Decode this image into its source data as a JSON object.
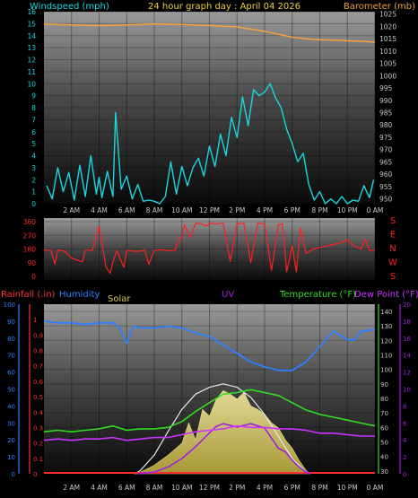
{
  "colors": {
    "windspeed": "#19d6e0",
    "barometer": "#f0a040",
    "wind_dir": "#ff2020",
    "rainfall": "#ff3030",
    "humidity": "#2f7fff",
    "solar": "#d8c85a",
    "uv": "#a020e0",
    "temperature": "#33dd22",
    "dewpoint": "#cc33ff",
    "axis_text": "#c8c8c8",
    "background": "#000000"
  },
  "header": {
    "left_label": "Windspeed (mph)",
    "title": "24 hour graph day : April 04 2026",
    "right_label": "Barometer (mb)"
  },
  "panel3_labels": {
    "rainfall": "Rainfall (.in)",
    "humidity": "Humidity",
    "solar": "Solar",
    "uv": "UV",
    "temperature": "Temperature (°F)",
    "dewpoint": "Dew Point (°F)"
  },
  "x_ticks": [
    "2 AM",
    "4 AM",
    "6 AM",
    "8 AM",
    "10 AM",
    "12 PM",
    "2 PM",
    "4 PM",
    "6 PM",
    "8 PM",
    "10 PM",
    "0 AM"
  ],
  "chart_data": [
    {
      "type": "line",
      "id": "wind_baro",
      "title": "24 hour graph day : April 04 2026",
      "xlabel": "",
      "x_unit": "hours (0 = midnight, 24 = next midnight)",
      "ylabel": "Windspeed (mph)",
      "ylim": [
        0,
        16
      ],
      "yticks": [
        0,
        1,
        2,
        3,
        4,
        5,
        6,
        7,
        8,
        9,
        10,
        11,
        12,
        13,
        14,
        15,
        16
      ],
      "y2label": "Barometer (mb)",
      "y2lim": [
        948,
        1026
      ],
      "y2ticks": [
        950,
        955,
        960,
        965,
        970,
        975,
        980,
        985,
        990,
        995,
        1000,
        1005,
        1010,
        1015,
        1020,
        1025
      ],
      "series": [
        {
          "name": "Windspeed (mph)",
          "axis": "left",
          "x": [
            0.2,
            0.6,
            1.0,
            1.4,
            1.8,
            2.2,
            2.6,
            3.0,
            3.4,
            3.8,
            4.0,
            4.2,
            4.6,
            5.0,
            5.2,
            5.6,
            6.0,
            6.4,
            6.8,
            7.2,
            7.6,
            8.0,
            8.4,
            8.8,
            9.2,
            9.6,
            10.0,
            10.4,
            10.8,
            11.2,
            11.6,
            12.0,
            12.4,
            12.8,
            13.2,
            13.6,
            14.0,
            14.4,
            14.8,
            15.2,
            15.6,
            16.0,
            16.4,
            16.8,
            17.2,
            17.6,
            18.0,
            18.4,
            18.8,
            19.2,
            19.6,
            20.0,
            20.4,
            20.8,
            21.2,
            21.6,
            22.0,
            22.4,
            22.8,
            23.2,
            23.6,
            23.9
          ],
          "values": [
            1.5,
            0.4,
            3.0,
            1.0,
            2.6,
            0.3,
            3.2,
            0.6,
            4.0,
            0.8,
            2.2,
            0.5,
            2.7,
            0.6,
            7.6,
            1.2,
            2.3,
            0.4,
            1.6,
            0.2,
            0.3,
            0.2,
            0.0,
            0.6,
            3.5,
            0.8,
            3.1,
            1.5,
            3.0,
            3.8,
            2.3,
            4.8,
            3.1,
            5.8,
            4.0,
            7.2,
            5.5,
            8.9,
            6.5,
            9.5,
            9.0,
            9.3,
            10.0,
            8.8,
            8.0,
            6.2,
            5.0,
            3.5,
            4.2,
            1.6,
            0.3,
            1.0,
            0.0,
            0.4,
            0.0,
            0.6,
            0.0,
            0.3,
            0.2,
            1.5,
            0.5,
            2.0
          ]
        },
        {
          "name": "Barometer (mb)",
          "axis": "right",
          "x": [
            0,
            2,
            4,
            6,
            8,
            10,
            12,
            14,
            16,
            18,
            19,
            20,
            21,
            22,
            23,
            24
          ],
          "values": [
            1021.0,
            1020.6,
            1020.3,
            1020.6,
            1021.0,
            1020.8,
            1020.4,
            1019.8,
            1018.0,
            1015.6,
            1015.0,
            1014.6,
            1014.5,
            1014.2,
            1014.0,
            1013.6
          ]
        }
      ]
    },
    {
      "type": "line",
      "id": "wind_direction",
      "xlabel": "",
      "ylabel": "",
      "ylim": [
        0,
        360
      ],
      "yticks": [
        0,
        90,
        180,
        270,
        360
      ],
      "compass_labels": [
        "S",
        "E",
        "N",
        "W",
        "S"
      ],
      "series": [
        {
          "name": "Wind direction",
          "x": [
            0.0,
            0.5,
            0.8,
            1.0,
            1.5,
            2.0,
            2.8,
            3.0,
            3.5,
            4.0,
            4.5,
            4.8,
            5.0,
            5.3,
            5.5,
            5.8,
            6.0,
            6.5,
            7.0,
            7.3,
            7.6,
            8.0,
            8.5,
            9.0,
            9.5,
            9.8,
            10.0,
            10.2,
            10.6,
            11.0,
            11.4,
            11.8,
            12.0,
            12.5,
            13.0,
            13.5,
            14.0,
            14.5,
            15.0,
            15.5,
            16.0,
            16.5,
            17.0,
            17.3,
            17.6,
            18.0,
            18.3,
            18.6,
            19.0,
            19.5,
            20.0,
            20.5,
            21.0,
            21.5,
            22.0,
            22.5,
            23.0,
            23.3,
            23.6,
            24.0
          ],
          "values": [
            175,
            170,
            80,
            175,
            165,
            120,
            95,
            175,
            170,
            330,
            60,
            20,
            95,
            170,
            120,
            60,
            170,
            165,
            165,
            175,
            80,
            170,
            175,
            170,
            170,
            250,
            255,
            340,
            255,
            350,
            345,
            330,
            350,
            345,
            350,
            100,
            345,
            350,
            90,
            350,
            345,
            40,
            340,
            345,
            30,
            200,
            30,
            320,
            150,
            180,
            190,
            200,
            210,
            220,
            240,
            200,
            180,
            245,
            170,
            175
          ]
        }
      ]
    },
    {
      "type": "line",
      "id": "rain_humidity_solar_uv_temp",
      "xlabel": "",
      "ylabel": "Rainfall (.in)",
      "ylim_rainfall": [
        0,
        1.1
      ],
      "yticks_rainfall": [
        0,
        0.1,
        0.2,
        0.3,
        0.4,
        0.5,
        0.6,
        0.7,
        0.8,
        0.9,
        1
      ],
      "ylim_humidity": [
        0,
        100
      ],
      "yticks_humidity": [
        0,
        5,
        10,
        15,
        20,
        25,
        30,
        35,
        40,
        45,
        50,
        55,
        60,
        65,
        70,
        75,
        80,
        85,
        90,
        95,
        100
      ],
      "ylim_temperature": [
        28,
        145
      ],
      "yticks_temperature": [
        30,
        40,
        50,
        60,
        70,
        80,
        90,
        100,
        110,
        120,
        130,
        140
      ],
      "ylim_uv": [
        0,
        20
      ],
      "yticks_uv": [
        0,
        2,
        4,
        6,
        8,
        10,
        12,
        14,
        16,
        18,
        20
      ],
      "series": [
        {
          "name": "Humidity",
          "axis": "humidity",
          "x": [
            0,
            1,
            2,
            3,
            4,
            5,
            5.5,
            6,
            6.5,
            7,
            8,
            9,
            10,
            11,
            12,
            13,
            14,
            15,
            16,
            17,
            18,
            19,
            20,
            21,
            22,
            22.5,
            23,
            24
          ],
          "values": [
            90,
            89,
            89,
            88,
            89,
            89,
            86,
            77,
            87,
            86,
            86,
            87,
            86,
            83,
            81,
            76,
            71,
            66,
            63,
            61,
            61,
            66,
            75,
            84,
            79,
            79,
            84,
            85
          ]
        },
        {
          "name": "Temperature (°F)",
          "axis": "temperature",
          "x": [
            0,
            1,
            2,
            3,
            4,
            5,
            6,
            7,
            8,
            9,
            10,
            11,
            12,
            13,
            14,
            15,
            16,
            17,
            18,
            19,
            20,
            21,
            22,
            23,
            24
          ],
          "values": [
            57,
            58,
            57,
            58,
            59,
            61,
            58,
            59,
            59,
            60,
            64,
            71,
            77,
            83,
            84,
            86,
            84,
            82,
            77,
            72,
            69,
            67,
            65,
            63,
            61
          ]
        },
        {
          "name": "Dew Point (°F)",
          "axis": "temperature",
          "x": [
            0,
            1,
            2,
            3,
            4,
            5,
            6,
            7,
            8,
            9,
            10,
            11,
            12,
            13,
            14,
            15,
            16,
            17,
            18,
            19,
            20,
            21,
            22,
            23,
            24
          ],
          "values": [
            51,
            52,
            51,
            52,
            52,
            53,
            51,
            52,
            53,
            53,
            55,
            57,
            58,
            59,
            61,
            60,
            60,
            59,
            59,
            58,
            56,
            56,
            55,
            54,
            54
          ]
        },
        {
          "name": "Solar",
          "axis": "humidity",
          "x": [
            6.5,
            7,
            8,
            9,
            10,
            10.5,
            11,
            11.5,
            12,
            12.5,
            13,
            13.5,
            14,
            14.5,
            15,
            15.5,
            16,
            16.5,
            17,
            17.5,
            18,
            18.5,
            19,
            19.3
          ],
          "values": [
            0,
            1,
            5,
            11,
            18,
            30,
            20,
            38,
            34,
            44,
            49,
            47,
            44,
            48,
            40,
            38,
            35,
            30,
            27,
            20,
            15,
            8,
            2,
            0
          ]
        },
        {
          "name": "Solar max",
          "axis": "humidity",
          "x": [
            6.6,
            7,
            8,
            9,
            10,
            11,
            12,
            13,
            14,
            15,
            16,
            17,
            18,
            19,
            19.3
          ],
          "values": [
            0,
            2,
            11,
            25,
            38,
            47,
            51,
            53,
            51,
            45,
            35,
            22,
            9,
            1,
            0
          ]
        },
        {
          "name": "UV",
          "axis": "uv",
          "x": [
            6.8,
            8,
            9,
            10,
            11,
            12,
            12.5,
            13,
            14,
            15,
            16,
            16.5,
            17,
            17.5,
            18,
            18.5,
            19,
            19.3
          ],
          "values": [
            0,
            0.2,
            0.8,
            1.8,
            3.2,
            4.8,
            5.6,
            5.9,
            5.5,
            5.9,
            5.4,
            4.2,
            3.0,
            2.6,
            1.6,
            0.8,
            0.2,
            0
          ]
        },
        {
          "name": "Rainfall (.in)",
          "axis": "rainfall",
          "x": [
            0,
            24
          ],
          "values": [
            0,
            0
          ]
        }
      ]
    }
  ]
}
